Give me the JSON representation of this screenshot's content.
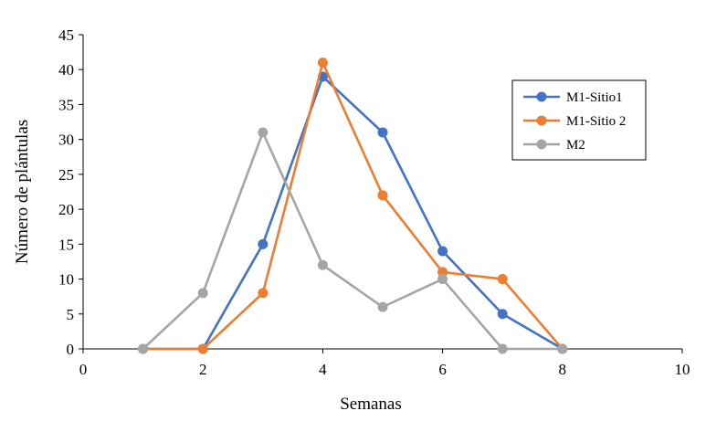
{
  "chart_data": {
    "type": "scatter",
    "xlabel": "Semanas",
    "ylabel": "Número de plántulas",
    "xlim": [
      0,
      10
    ],
    "ylim": [
      0,
      45
    ],
    "xticks": [
      0,
      2,
      4,
      6,
      8,
      10
    ],
    "yticks": [
      0,
      5,
      10,
      15,
      20,
      25,
      30,
      35,
      40,
      45
    ],
    "grid": false,
    "legend_position": "right",
    "series": [
      {
        "name": "M1-Sitio1",
        "color": "#4472C4",
        "points": [
          [
            1,
            0
          ],
          [
            2,
            0
          ],
          [
            3,
            15
          ],
          [
            4,
            39
          ],
          [
            5,
            31
          ],
          [
            6,
            14
          ],
          [
            7,
            5
          ],
          [
            8,
            0
          ]
        ]
      },
      {
        "name": "M1-Sitio 2",
        "color": "#ED7D31",
        "points": [
          [
            1,
            0
          ],
          [
            2,
            0
          ],
          [
            3,
            8
          ],
          [
            4,
            41
          ],
          [
            5,
            22
          ],
          [
            6,
            11
          ],
          [
            7,
            10
          ],
          [
            8,
            0
          ]
        ]
      },
      {
        "name": "M2",
        "color": "#A5A5A5",
        "points": [
          [
            1,
            0
          ],
          [
            2,
            8
          ],
          [
            3,
            31
          ],
          [
            4,
            12
          ],
          [
            5,
            6
          ],
          [
            6,
            10
          ],
          [
            7,
            0
          ],
          [
            8,
            0
          ]
        ]
      }
    ]
  }
}
